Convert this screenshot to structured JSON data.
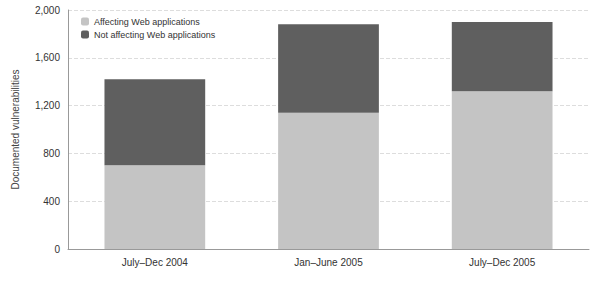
{
  "chart_data": {
    "type": "bar",
    "stacked": true,
    "y_label": "Documented vulnerabilities",
    "categories": [
      "July–Dec 2004",
      "Jan–June 2005",
      "July–Dec 2005"
    ],
    "series": [
      {
        "name": "Affecting Web applications",
        "color": "#c4c4c4",
        "values": [
          700,
          1140,
          1320
        ]
      },
      {
        "name": "Not affecting Web applications",
        "color": "#5f5f5f",
        "values": [
          720,
          740,
          580
        ]
      }
    ],
    "ylim": [
      0,
      2000
    ],
    "yticks": [
      0,
      400,
      800,
      {
        "value": 1200,
        "label": "1,200"
      },
      {
        "value": 1600,
        "label": "1,600"
      },
      {
        "value": 2000,
        "label": "2,000"
      }
    ],
    "grid": true,
    "legend": "upper left"
  }
}
